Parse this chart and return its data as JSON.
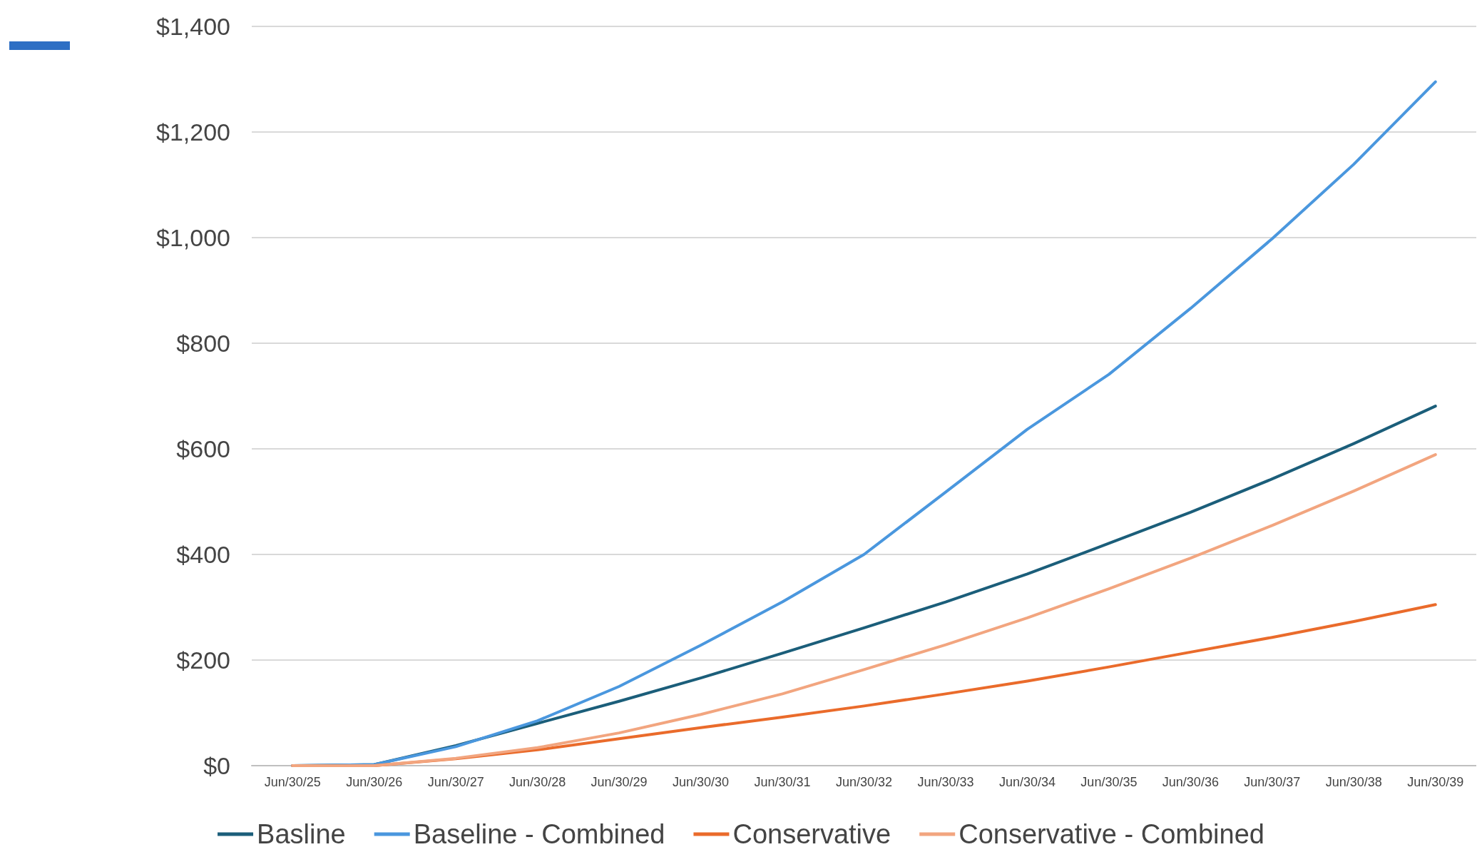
{
  "chart_data": {
    "type": "line",
    "categories": [
      "Jun/30/25",
      "Jun/30/26",
      "Jun/30/27",
      "Jun/30/28",
      "Jun/30/29",
      "Jun/30/30",
      "Jun/30/31",
      "Jun/30/32",
      "Jun/30/33",
      "Jun/30/34",
      "Jun/30/35",
      "Jun/30/36",
      "Jun/30/37",
      "Jun/30/38",
      "Jun/30/39"
    ],
    "series": [
      {
        "name": "Basline",
        "color": "#1b5e7a",
        "values": [
          0,
          2,
          38,
          80,
          122,
          166,
          213,
          261,
          310,
          363,
          421,
          480,
          543,
          610,
          681
        ]
      },
      {
        "name": "Baseline - Combined",
        "color": "#4a97de",
        "values": [
          0,
          2,
          36,
          85,
          150,
          228,
          310,
          400,
          518,
          637,
          741,
          866,
          998,
          1139,
          1295
        ]
      },
      {
        "name": "Conservative",
        "color": "#ea6b2b",
        "values": [
          0,
          0,
          13,
          30,
          51,
          72,
          92,
          113,
          136,
          160,
          187,
          215,
          243,
          273,
          305
        ]
      },
      {
        "name": "Conservative - Combined",
        "color": "#f2a57f",
        "values": [
          0,
          0,
          14,
          34,
          62,
          97,
          136,
          182,
          229,
          280,
          335,
          393,
          455,
          520,
          589
        ]
      }
    ],
    "ylim": [
      0,
      1400
    ],
    "yticks": [
      {
        "value": 0,
        "label": "$0"
      },
      {
        "value": 200,
        "label": "$200"
      },
      {
        "value": 400,
        "label": "$400"
      },
      {
        "value": 600,
        "label": "$600"
      },
      {
        "value": 800,
        "label": "$800"
      },
      {
        "value": 1000,
        "label": "$1,000"
      },
      {
        "value": 1200,
        "label": "$1,200"
      },
      {
        "value": 1400,
        "label": "$1,400"
      }
    ],
    "grid": "y",
    "legend": "bottom",
    "marker": "none",
    "line_style": "solid"
  }
}
